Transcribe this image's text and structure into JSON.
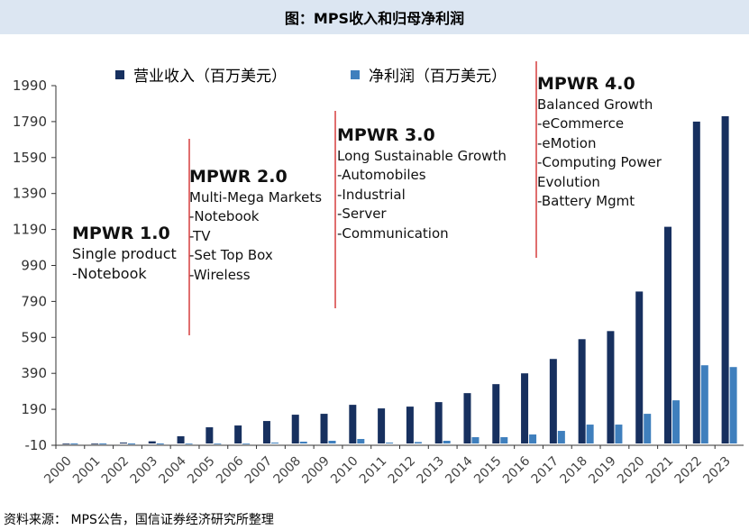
{
  "header": {
    "title": "图：MPS收入和归母净利润"
  },
  "source": "资料来源： MPS公告，国信证券经济研究所整理",
  "colors": {
    "revenue": "#17305f",
    "profit": "#3f7fbd",
    "divider": "#d02020",
    "axis": "#333333",
    "title_bg": "#dce6f2"
  },
  "legend": [
    {
      "label": "营业收入（百万美元）",
      "color": "#17305f"
    },
    {
      "label": "净利润（百万美元）",
      "color": "#3f7fbd"
    }
  ],
  "eras": [
    {
      "title": "MPWR 1.0",
      "subtitle": "Single product",
      "items": [
        "-Notebook"
      ]
    },
    {
      "title": "MPWR 2.0",
      "subtitle": "Multi-Mega Markets",
      "items": [
        "-Notebook",
        "-TV",
        "-Set Top Box",
        "-Wireless"
      ]
    },
    {
      "title": "MPWR 3.0",
      "subtitle": "Long Sustainable Growth",
      "items": [
        "-Automobiles",
        "-Industrial",
        "-Server",
        "-Communication"
      ]
    },
    {
      "title": "MPWR 4.0",
      "subtitle": "Balanced Growth",
      "items": [
        "-eCommerce",
        "-eMotion",
        "-Computing Power",
        "Evolution",
        "-Battery Mgmt"
      ]
    }
  ],
  "chart_data": {
    "type": "bar",
    "categories": [
      "2000",
      "2001",
      "2002",
      "2003",
      "2004",
      "2005",
      "2006",
      "2007",
      "2008",
      "2009",
      "2010",
      "2011",
      "2012",
      "2013",
      "2014",
      "2015",
      "2016",
      "2017",
      "2018",
      "2019",
      "2020",
      "2021",
      "2022",
      "2023"
    ],
    "series": [
      {
        "name": "营业收入（百万美元）",
        "values": [
          0,
          0,
          5,
          12,
          40,
          90,
          100,
          125,
          160,
          165,
          215,
          195,
          205,
          230,
          280,
          330,
          390,
          470,
          580,
          625,
          845,
          1205,
          1790,
          1820
        ]
      },
      {
        "name": "净利润（百万美元）",
        "values": [
          -5,
          -5,
          -5,
          -5,
          0,
          -3,
          -3,
          5,
          10,
          15,
          25,
          5,
          8,
          15,
          35,
          35,
          50,
          70,
          105,
          105,
          165,
          240,
          435,
          425
        ]
      }
    ],
    "ylim": [
      -10,
      2000
    ],
    "yticks": [
      -10,
      190,
      390,
      590,
      790,
      990,
      1190,
      1390,
      1590,
      1790,
      1990
    ],
    "grid": false,
    "legend_position": "top"
  }
}
